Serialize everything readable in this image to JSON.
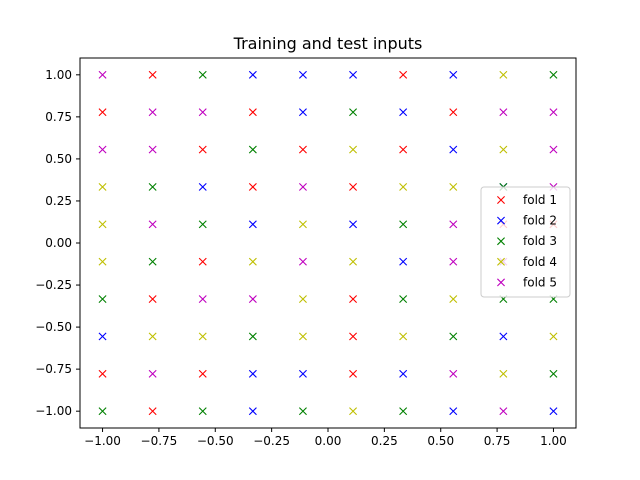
{
  "chart_data": {
    "type": "scatter",
    "title": "Training and test inputs",
    "xlabel": "",
    "ylabel": "",
    "xlim": [
      -1.1,
      1.1
    ],
    "ylim": [
      -1.1,
      1.1
    ],
    "grid": false,
    "legend_position": "center-right",
    "marker": "x",
    "x_ticks": [
      -1.0,
      -0.75,
      -0.5,
      -0.25,
      0.0,
      0.25,
      0.5,
      0.75,
      1.0
    ],
    "y_ticks": [
      -1.0,
      -0.75,
      -0.5,
      -0.25,
      0.0,
      0.25,
      0.5,
      0.75,
      1.0
    ],
    "x_tick_labels": [
      "−1.00",
      "−0.75",
      "−0.50",
      "−0.25",
      "0.00",
      "0.25",
      "0.50",
      "0.75",
      "1.00"
    ],
    "y_tick_labels": [
      "−1.00",
      "−0.75",
      "−0.50",
      "−0.25",
      "0.00",
      "0.25",
      "0.50",
      "0.75",
      "1.00"
    ],
    "series": [
      {
        "name": "fold 1",
        "color": "#ff0000",
        "points": [
          [
            -1.0,
            0.7778
          ],
          [
            -1.0,
            -0.7778
          ],
          [
            -0.7778,
            1.0
          ],
          [
            -0.7778,
            -0.3333
          ],
          [
            -0.7778,
            -1.0
          ],
          [
            -0.5556,
            0.5556
          ],
          [
            -0.5556,
            -0.1111
          ],
          [
            -0.5556,
            -0.7778
          ],
          [
            -0.3333,
            0.7778
          ],
          [
            -0.3333,
            0.3333
          ],
          [
            -0.1111,
            0.5556
          ],
          [
            0.1111,
            0.3333
          ],
          [
            0.1111,
            -0.3333
          ],
          [
            0.1111,
            -0.5556
          ],
          [
            0.1111,
            -0.7778
          ],
          [
            0.3333,
            1.0
          ],
          [
            0.3333,
            0.5556
          ],
          [
            0.5556,
            0.7778
          ],
          [
            0.7778,
            0.1111
          ],
          [
            1.0,
            0.1111
          ]
        ]
      },
      {
        "name": "fold 2",
        "color": "#0000ff",
        "points": [
          [
            -1.0,
            -0.5556
          ],
          [
            -0.5556,
            0.3333
          ],
          [
            -0.3333,
            1.0
          ],
          [
            -0.3333,
            0.1111
          ],
          [
            -0.3333,
            -0.7778
          ],
          [
            -0.3333,
            -1.0
          ],
          [
            -0.1111,
            1.0
          ],
          [
            -0.1111,
            0.7778
          ],
          [
            -0.1111,
            -0.7778
          ],
          [
            0.1111,
            1.0
          ],
          [
            0.1111,
            0.1111
          ],
          [
            0.3333,
            0.7778
          ],
          [
            0.3333,
            -0.1111
          ],
          [
            0.3333,
            -0.7778
          ],
          [
            0.5556,
            1.0
          ],
          [
            0.5556,
            0.5556
          ],
          [
            0.5556,
            -1.0
          ],
          [
            0.7778,
            0.3333
          ],
          [
            0.7778,
            -0.5556
          ],
          [
            1.0,
            -1.0
          ]
        ]
      },
      {
        "name": "fold 3",
        "color": "#008000",
        "points": [
          [
            -1.0,
            -0.3333
          ],
          [
            -1.0,
            -1.0
          ],
          [
            -0.7778,
            0.3333
          ],
          [
            -0.7778,
            -0.1111
          ],
          [
            -0.5556,
            1.0
          ],
          [
            -0.5556,
            0.1111
          ],
          [
            -0.5556,
            -1.0
          ],
          [
            -0.3333,
            0.5556
          ],
          [
            -0.3333,
            -0.5556
          ],
          [
            -0.1111,
            -1.0
          ],
          [
            0.1111,
            0.7778
          ],
          [
            0.3333,
            0.1111
          ],
          [
            0.3333,
            -0.3333
          ],
          [
            0.3333,
            -1.0
          ],
          [
            0.5556,
            -0.5556
          ],
          [
            0.7778,
            0.3333
          ],
          [
            0.7778,
            -0.3333
          ],
          [
            1.0,
            1.0
          ],
          [
            1.0,
            -0.3333
          ],
          [
            1.0,
            -0.7778
          ]
        ]
      },
      {
        "name": "fold 4",
        "color": "#bfbf00",
        "points": [
          [
            -1.0,
            0.3333
          ],
          [
            -1.0,
            0.1111
          ],
          [
            -1.0,
            -0.1111
          ],
          [
            -0.7778,
            -0.5556
          ],
          [
            -0.5556,
            -0.5556
          ],
          [
            -0.3333,
            -0.1111
          ],
          [
            -0.1111,
            0.1111
          ],
          [
            -0.1111,
            -0.3333
          ],
          [
            -0.1111,
            -0.5556
          ],
          [
            0.1111,
            0.5556
          ],
          [
            0.1111,
            -0.1111
          ],
          [
            0.1111,
            -1.0
          ],
          [
            0.3333,
            0.3333
          ],
          [
            0.3333,
            -0.5556
          ],
          [
            0.5556,
            0.3333
          ],
          [
            0.5556,
            -0.3333
          ],
          [
            0.7778,
            1.0
          ],
          [
            0.7778,
            0.5556
          ],
          [
            0.7778,
            -0.7778
          ],
          [
            1.0,
            -0.5556
          ]
        ]
      },
      {
        "name": "fold 5",
        "color": "#bf00bf",
        "points": [
          [
            -1.0,
            1.0
          ],
          [
            -1.0,
            0.5556
          ],
          [
            -0.7778,
            0.7778
          ],
          [
            -0.7778,
            0.5556
          ],
          [
            -0.7778,
            0.1111
          ],
          [
            -0.7778,
            -0.7778
          ],
          [
            -0.5556,
            0.7778
          ],
          [
            -0.5556,
            -0.3333
          ],
          [
            -0.3333,
            -0.3333
          ],
          [
            -0.1111,
            0.3333
          ],
          [
            -0.1111,
            -0.1111
          ],
          [
            0.5556,
            0.1111
          ],
          [
            0.5556,
            -0.1111
          ],
          [
            0.5556,
            -0.7778
          ],
          [
            0.7778,
            0.7778
          ],
          [
            0.7778,
            -0.1111
          ],
          [
            0.7778,
            -1.0
          ],
          [
            1.0,
            0.7778
          ],
          [
            1.0,
            0.5556
          ],
          [
            1.0,
            0.3333
          ]
        ]
      }
    ]
  }
}
